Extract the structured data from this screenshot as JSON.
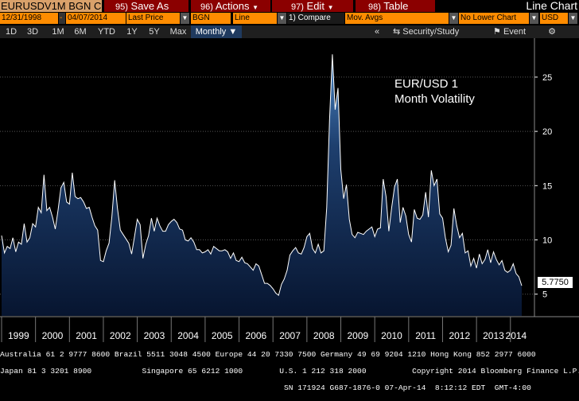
{
  "toolbar": {
    "ticker": "EURUSDV1M BGN C",
    "save_num": "95)",
    "save_label": "Save As",
    "actions_num": "96)",
    "actions_label": "Actions",
    "edit_num": "97)",
    "edit_label": "Edit",
    "table_num": "98)",
    "table_label": "Table",
    "chart_title": "Line Chart"
  },
  "settings": {
    "start_date": "12/31/1998",
    "end_date": "04/07/2014",
    "price_field": "Last Price",
    "source": "BGN",
    "chart_type": "Line",
    "compare": "1) Compare",
    "moving_avgs": "Mov. Avgs",
    "lower_chart": "No Lower Chart",
    "currency": "USD"
  },
  "ranges": [
    "1D",
    "3D",
    "1M",
    "6M",
    "YTD",
    "1Y",
    "5Y",
    "Max"
  ],
  "period": "Monthly ▼",
  "security_study": "Security/Study",
  "event": "Event",
  "collapse_icon": "«",
  "chart_data": {
    "type": "area",
    "annotation_line1": "EUR/USD 1",
    "annotation_line2": "Month Volatility",
    "ylim": [
      3,
      28
    ],
    "yticks": [
      "5",
      "10",
      "15",
      "20",
      "25"
    ],
    "xticks": [
      "1999",
      "2000",
      "2001",
      "2002",
      "2003",
      "2004",
      "2005",
      "2006",
      "2007",
      "2008",
      "2009",
      "2010",
      "2011",
      "2012",
      "2013",
      "2014"
    ],
    "last_value": "5.7750",
    "x_start": "1999-01",
    "values": [
      10.4,
      8.8,
      9.4,
      9.2,
      10.2,
      8.9,
      9.8,
      9.6,
      11.5,
      9.8,
      10.2,
      11.5,
      11.2,
      13.0,
      12.5,
      16.0,
      12.7,
      13.0,
      12.1,
      11.0,
      12.8,
      14.8,
      15.3,
      13.5,
      13.3,
      16.2,
      14.0,
      13.8,
      13.9,
      13.5,
      12.9,
      13.0,
      12.1,
      11.3,
      10.9,
      8.1,
      8.0,
      9.0,
      9.7,
      12.1,
      15.5,
      12.9,
      10.9,
      10.5,
      10.1,
      9.7,
      8.7,
      10.3,
      11.9,
      11.4,
      8.3,
      9.6,
      10.4,
      12.0,
      10.8,
      12.0,
      11.3,
      10.8,
      10.8,
      11.4,
      11.7,
      11.9,
      11.6,
      11.0,
      10.9,
      10.0,
      9.9,
      10.2,
      9.8,
      9.1,
      9.1,
      8.8,
      8.9,
      9.1,
      8.7,
      9.4,
      9.2,
      9.0,
      9.0,
      9.1,
      8.9,
      8.3,
      8.8,
      8.1,
      8.0,
      8.4,
      7.9,
      7.8,
      7.5,
      7.2,
      7.8,
      7.6,
      6.8,
      6.0,
      6.0,
      5.8,
      5.5,
      5.1,
      4.9,
      5.9,
      6.4,
      7.2,
      8.6,
      9.0,
      9.3,
      8.8,
      8.7,
      9.3,
      10.3,
      10.6,
      9.2,
      8.8,
      9.6,
      8.8,
      9.0,
      13.0,
      21.0,
      27.1,
      22.0,
      24.0,
      16.5,
      13.8,
      15.1,
      11.9,
      10.5,
      10.2,
      10.7,
      10.6,
      10.5,
      10.8,
      11.0,
      11.2,
      10.3,
      11.0,
      11.1,
      15.6,
      14.0,
      10.8,
      13.0,
      14.9,
      15.6,
      11.6,
      13.0,
      12.2,
      10.5,
      9.8,
      12.8,
      12.0,
      11.9,
      12.3,
      14.4,
      12.1,
      16.4,
      15.0,
      15.6,
      12.4,
      12.0,
      10.2,
      8.9,
      9.5,
      12.9,
      11.3,
      10.2,
      10.6,
      8.8,
      9.0,
      7.6,
      8.3,
      7.4,
      8.7,
      7.8,
      8.2,
      9.1,
      7.9,
      8.9,
      8.2,
      7.7,
      8.1,
      7.2,
      7.0,
      7.2,
      7.8,
      6.9,
      6.6,
      5.78
    ]
  },
  "footer": {
    "line1": "Australia 61 2 9777 8600 Brazil 5511 3048 4500 Europe 44 20 7330 7500 Germany 49 69 9204 1210 Hong Kong 852 2977 6000",
    "line2": "Japan 81 3 3201 8900           Singapore 65 6212 1000        U.S. 1 212 318 2000          Copyright 2014 Bloomberg Finance L.P.",
    "line3": "                                                              SN 171924 G687-1876-0 07-Apr-14  8:12:12 EDT  GMT-4:00"
  },
  "colors": {
    "menu_red": "#8b0000",
    "field_orange": "#ff8c00",
    "ticker_tan": "#d9a16a",
    "line_white": "#ffffff",
    "fill_top": "#3a6fa8",
    "fill_bottom": "#0a1a3a"
  }
}
